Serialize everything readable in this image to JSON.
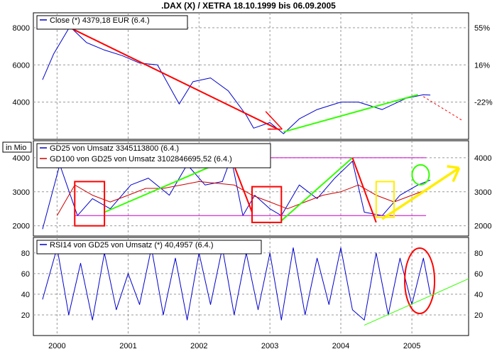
{
  "title": ".DAX (X) / XETRA 18.10.1999 bis 06.09.2005",
  "colors": {
    "price": "#0000cc",
    "gd100": "#cc0000",
    "annot_red": "#ff0000",
    "annot_green": "#33ff00",
    "annot_yellow": "#ffee00",
    "annot_magenta": "#cc00cc",
    "grid": "#999999"
  },
  "chart_data": [
    {
      "type": "line",
      "name": "price",
      "legend": [
        "Close (*) 4379,18 EUR (6.4.)"
      ],
      "x": [
        "1999-10-18",
        "1999-12-15",
        "2000-03-07",
        "2000-06-01",
        "2000-09-01",
        "2000-12-01",
        "2001-03-01",
        "2001-06-01",
        "2001-09-21",
        "2001-12-01",
        "2002-03-01",
        "2002-06-01",
        "2002-09-01",
        "2002-10-09",
        "2003-01-01",
        "2003-03-12",
        "2003-06-01",
        "2003-09-01",
        "2004-01-01",
        "2004-04-01",
        "2004-08-01",
        "2004-12-01",
        "2005-03-01",
        "2005-04-06"
      ],
      "y": [
        5200,
        6600,
        8060,
        7200,
        6800,
        6500,
        6100,
        6000,
        3900,
        5100,
        5300,
        4600,
        3300,
        2600,
        2900,
        2300,
        3100,
        3600,
        4000,
        4000,
        3600,
        4200,
        4400,
        4379
      ],
      "yticks": [
        4000,
        6000,
        8000
      ],
      "ytick_labels": [
        "4000",
        "6000",
        "8000"
      ],
      "ylim": [
        2000,
        8800
      ],
      "right_tick_labels": [
        "55%",
        "16%",
        "-22%"
      ],
      "right_tick_values": [
        8000,
        6000,
        4000
      ]
    },
    {
      "type": "line",
      "name": "volume",
      "ylabel": "in Mio",
      "legend": [
        "GD25 von Umsatz 3345113800 (6.4.)",
        "GD100 von GD25 von Umsatz 3102846695,52 (6.4.)"
      ],
      "series": [
        {
          "name": "GD25 von Umsatz",
          "x": [
            "1999-10-18",
            "2000-01-15",
            "2000-04-15",
            "2000-07-01",
            "2000-10-01",
            "2001-01-15",
            "2001-04-15",
            "2001-08-01",
            "2001-11-01",
            "2002-02-01",
            "2002-05-01",
            "2002-06-15",
            "2002-08-15",
            "2002-10-15",
            "2003-01-01",
            "2003-03-01",
            "2003-06-01",
            "2003-09-01",
            "2003-12-01",
            "2004-03-01",
            "2004-05-01",
            "2004-08-01",
            "2004-11-01",
            "2005-02-01",
            "2005-04-06"
          ],
          "y": [
            1900,
            3800,
            2300,
            2800,
            2500,
            3200,
            3400,
            2900,
            3800,
            3200,
            3300,
            4000,
            2300,
            2900,
            2500,
            2300,
            3200,
            2800,
            3400,
            3900,
            2400,
            2300,
            2900,
            3200,
            3345
          ]
        },
        {
          "name": "GD100 von GD25 von Umsatz",
          "x": [
            "2000-01-01",
            "2000-04-01",
            "2000-07-01",
            "2000-10-01",
            "2001-01-01",
            "2001-04-01",
            "2001-07-01",
            "2001-10-01",
            "2002-01-01",
            "2002-04-01",
            "2002-07-01",
            "2002-10-01",
            "2003-01-01",
            "2003-04-01",
            "2003-07-01",
            "2003-10-01",
            "2004-01-01",
            "2004-04-01",
            "2004-07-01",
            "2004-10-01",
            "2005-01-01",
            "2005-04-06"
          ],
          "y": [
            2300,
            3200,
            2900,
            2700,
            2900,
            3100,
            3100,
            3200,
            3300,
            3250,
            3200,
            2900,
            2700,
            2500,
            2700,
            2900,
            3000,
            3200,
            2900,
            2700,
            2900,
            3103
          ]
        }
      ],
      "yticks": [
        2000,
        3000,
        4000
      ],
      "ytick_labels": [
        "2000",
        "3000",
        "4000"
      ],
      "ylim": [
        1700,
        4500
      ]
    },
    {
      "type": "line",
      "name": "rsi",
      "legend": [
        "RSI14 von GD25 von Umsatz (*) 40,4957 (6.4.)"
      ],
      "x": [
        "1999-10-18",
        "2000-01-01",
        "2000-03-01",
        "2000-05-01",
        "2000-07-01",
        "2000-09-01",
        "2000-11-01",
        "2001-01-01",
        "2001-03-01",
        "2001-05-01",
        "2001-07-01",
        "2001-09-01",
        "2001-11-01",
        "2002-01-01",
        "2002-03-01",
        "2002-05-01",
        "2002-07-01",
        "2002-09-01",
        "2002-11-01",
        "2003-01-01",
        "2003-03-01",
        "2003-05-01",
        "2003-07-01",
        "2003-09-01",
        "2003-11-01",
        "2004-01-01",
        "2004-03-01",
        "2004-05-01",
        "2004-07-01",
        "2004-09-01",
        "2004-11-01",
        "2005-01-01",
        "2005-03-01",
        "2005-04-06"
      ],
      "y": [
        35,
        85,
        20,
        70,
        15,
        80,
        25,
        60,
        30,
        85,
        20,
        75,
        15,
        80,
        30,
        85,
        20,
        80,
        25,
        80,
        15,
        85,
        20,
        75,
        30,
        85,
        25,
        15,
        80,
        20,
        75,
        30,
        75,
        40
      ],
      "yticks": [
        20,
        40,
        60,
        80
      ],
      "ytick_labels": [
        "20",
        "40",
        "60",
        "80"
      ],
      "ylim": [
        0,
        95
      ]
    }
  ],
  "x_axis": {
    "tick_labels": [
      "2000",
      "2001",
      "2002",
      "2003",
      "2004",
      "2005"
    ],
    "tick_dates": [
      "2000-01-01",
      "2001-01-01",
      "2002-01-01",
      "2003-01-01",
      "2004-01-01",
      "2005-01-01"
    ],
    "range": [
      "1999-09-01",
      "2005-10-20"
    ]
  }
}
